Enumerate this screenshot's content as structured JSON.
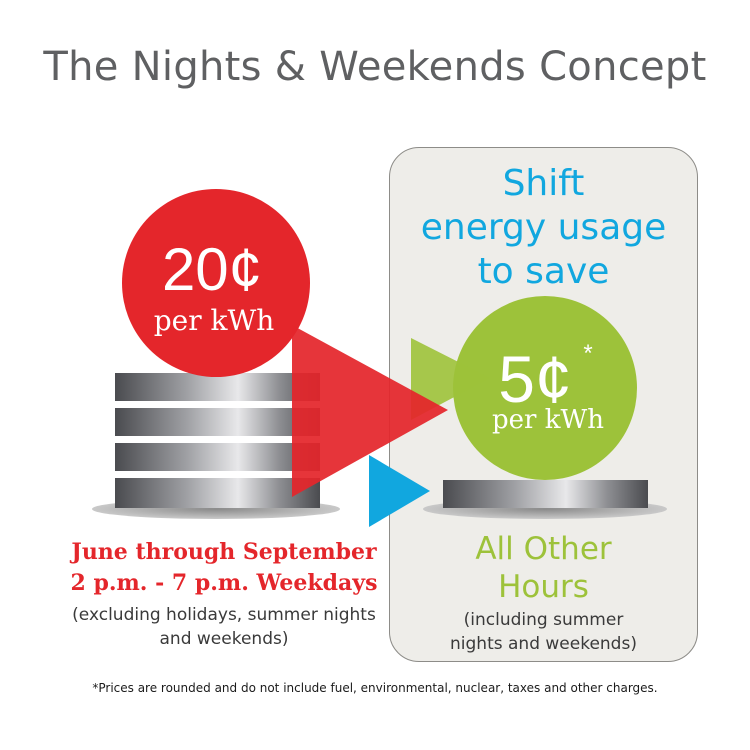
{
  "title": "The Nights & Weekends Concept",
  "shift_lines": [
    "Shift",
    "energy usage",
    "to save"
  ],
  "peak": {
    "price": "20¢",
    "unit": "per kWh",
    "color": "#e4262b"
  },
  "offpeak": {
    "price": "5¢",
    "asterisk": "*",
    "unit": "per kWh",
    "color": "#9dc23a"
  },
  "peak_caption": {
    "line1": "June through September",
    "line2": "2 p.m. - 7 p.m. Weekdays",
    "note_line1": "(excluding holidays, summer nights",
    "note_line2": "and weekends)"
  },
  "offpeak_caption": {
    "line1": "All Other",
    "line2": "Hours",
    "note_line1": "(including summer",
    "note_line2": "nights and weekends)"
  },
  "footnote": "*Prices are rounded and do not include fuel, environmental, nuclear, taxes and other charges.",
  "colors": {
    "title": "#5f6062",
    "shift": "#11a7df",
    "panel": "#eeede9",
    "arrow_blue": "#11a7df"
  }
}
